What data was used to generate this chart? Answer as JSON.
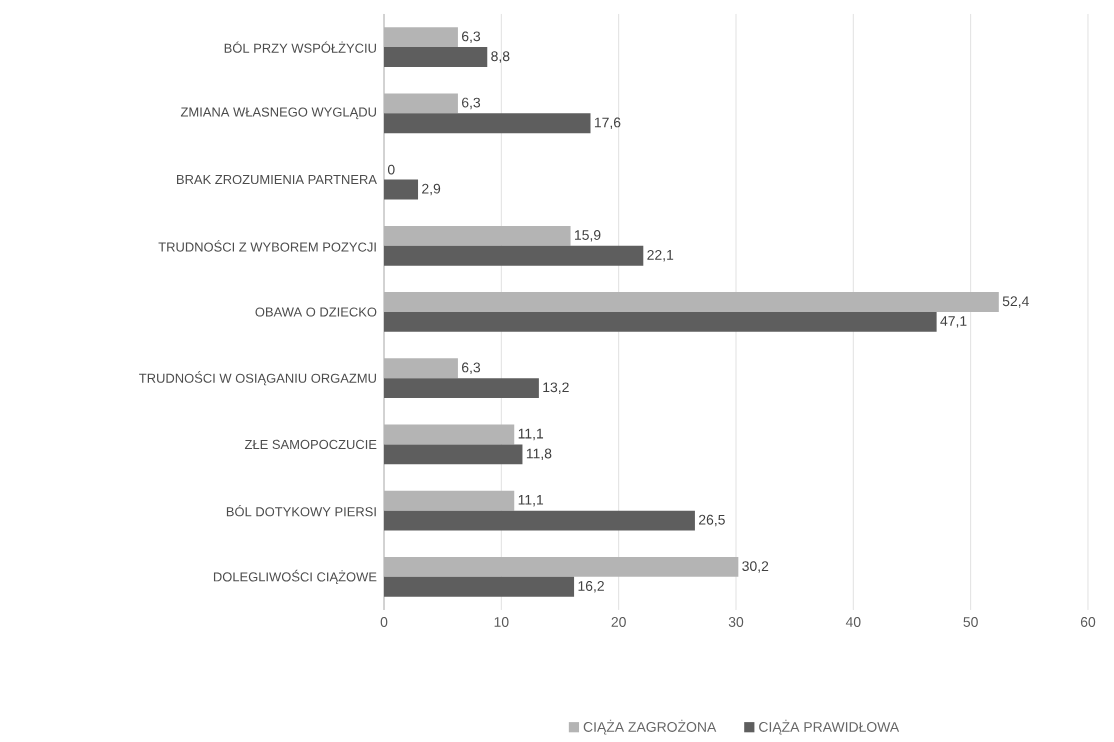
{
  "chart_data": {
    "type": "bar",
    "orientation": "horizontal",
    "categories": [
      "BÓL PRZY WSPÓŁŻYCIU",
      "ZMIANA WŁASNEGO WYGLĄDU",
      "BRAK ZROZUMIENIA PARTNERA",
      "TRUDNOŚCI Z WYBOREM POZYCJI",
      "OBAWA O DZIECKO",
      "TRUDNOŚCI W OSIĄGANIU ORGAZMU",
      "ZŁE SAMOPOCZUCIE",
      "BÓL DOTYKOWY PIERSI",
      "DOLEGLIWOŚCI CIĄŻOWE"
    ],
    "series": [
      {
        "name": "CIĄŻA ZAGROŻONA",
        "color": "#b4b4b4",
        "values": [
          6.3,
          6.3,
          0,
          15.9,
          52.4,
          6.3,
          11.1,
          11.1,
          30.2
        ],
        "value_labels": [
          "6,3",
          "6,3",
          "0",
          "15,9",
          "52,4",
          "6,3",
          "11,1",
          "11,1",
          "30,2"
        ]
      },
      {
        "name": "CIĄŻA PRAWIDŁOWA",
        "color": "#5e5e5e",
        "values": [
          8.8,
          17.6,
          2.9,
          22.1,
          47.1,
          13.2,
          11.8,
          26.5,
          16.2
        ],
        "value_labels": [
          "8,8",
          "17,6",
          "2,9",
          "22,1",
          "47,1",
          "13,2",
          "11,8",
          "26,5",
          "16,2"
        ]
      }
    ],
    "xlim": [
      0,
      60
    ],
    "xticks": [
      0,
      10,
      20,
      30,
      40,
      50,
      60
    ],
    "grid": "x",
    "legend": "bottom"
  }
}
